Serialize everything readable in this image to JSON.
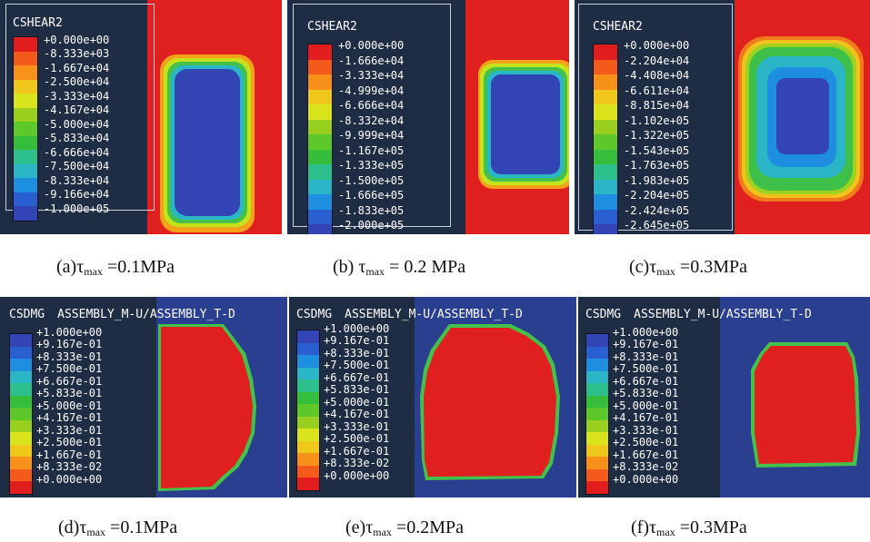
{
  "colors": {
    "red": "#e01f1f",
    "blue": "#3646a8",
    "navy": "#1e2c44",
    "panel_bg": "#1e2c44",
    "cdmg_bg": "#2a3f8f",
    "shear_scale": [
      "#e21d1d",
      "#f45a1a",
      "#f8911a",
      "#f0c81c",
      "#d9e41c",
      "#99d01f",
      "#5ec72a",
      "#35bd3c",
      "#2ec08c",
      "#2bb6c8",
      "#1d8ee0",
      "#2a5fd2",
      "#3344b4"
    ],
    "dmg_scale": [
      "#3344b4",
      "#2a5fd2",
      "#1d8ee0",
      "#2bb6c8",
      "#2ec08c",
      "#35bd3c",
      "#5ec72a",
      "#99d01f",
      "#d9e41c",
      "#f0c81c",
      "#f8911a",
      "#f45a1a",
      "#e21d1d"
    ]
  },
  "panels": {
    "a": {
      "legend_title": "CSHEAR2",
      "legend_values": [
        "+0.000e+00",
        "-8.333e+03",
        "-1.667e+04",
        "-2.500e+04",
        "-3.333e+04",
        "-4.167e+04",
        "-5.000e+04",
        "-5.833e+04",
        "-6.666e+04",
        "-7.500e+04",
        "-8.333e+04",
        "-9.166e+04",
        "-1.000e+05"
      ],
      "caption": {
        "prefix": "(a)",
        "tau": "τ",
        "sub": "max",
        "value": " =0.1MPa"
      }
    },
    "b": {
      "legend_title": "CSHEAR2",
      "legend_values": [
        "+0.000e+00",
        "-1.666e+04",
        "-3.333e+04",
        "-4.999e+04",
        "-6.666e+04",
        "-8.332e+04",
        "-9.999e+04",
        "-1.167e+05",
        "-1.333e+05",
        "-1.500e+05",
        "-1.666e+05",
        "-1.833e+05",
        "-2.000e+05"
      ],
      "caption": {
        "prefix": "(b) ",
        "tau": "τ",
        "sub": "max",
        "value": " = 0.2 MPa"
      }
    },
    "c": {
      "legend_title": "CSHEAR2",
      "legend_values": [
        "+0.000e+00",
        "-2.204e+04",
        "-4.408e+04",
        "-6.611e+04",
        "-8.815e+04",
        "-1.102e+05",
        "-1.322e+05",
        "-1.543e+05",
        "-1.763e+05",
        "-1.983e+05",
        "-2.204e+05",
        "-2.424e+05",
        "-2.645e+05"
      ],
      "caption": {
        "prefix": "(c)",
        "tau": "τ",
        "sub": "max",
        "value": " =0.3MPa"
      }
    },
    "d": {
      "legend_title": "CSDMG",
      "assembly_label": "ASSEMBLY_M-U/ASSEMBLY_T-D",
      "legend_values": [
        "+1.000e+00",
        "+9.167e-01",
        "+8.333e-01",
        "+7.500e-01",
        "+6.667e-01",
        "+5.833e-01",
        "+5.000e-01",
        "+4.167e-01",
        "+3.333e-01",
        "+2.500e-01",
        "+1.667e-01",
        "+8.333e-02",
        "+0.000e+00"
      ],
      "caption": {
        "prefix": "(d)",
        "tau": "τ",
        "sub": "max",
        "value": " =0.1MPa"
      }
    },
    "e": {
      "legend_title": "CSDMG",
      "assembly_label": "ASSEMBLY_M-U/ASSEMBLY_T-D",
      "legend_values": [
        "+1.000e+00",
        "+9.167e-01",
        "+8.333e-01",
        "+7.500e-01",
        "+6.667e-01",
        "+5.833e-01",
        "+5.000e-01",
        "+4.167e-01",
        "+3.333e-01",
        "+2.500e-01",
        "+1.667e-01",
        "+8.333e-02",
        "+0.000e+00"
      ],
      "caption": {
        "prefix": "(e)",
        "tau": "τ",
        "sub": "max",
        "value": " =0.2MPa"
      }
    },
    "f": {
      "legend_title": "CSDMG",
      "assembly_label": "ASSEMBLY_M-U/ASSEMBLY_T-D",
      "legend_values": [
        "+1.000e+00",
        "+9.167e-01",
        "+8.333e-01",
        "+7.500e-01",
        "+6.667e-01",
        "+5.833e-01",
        "+5.000e-01",
        "+4.167e-01",
        "+3.333e-01",
        "+2.500e-01",
        "+1.667e-01",
        "+8.333e-02",
        "+0.000e+00"
      ],
      "caption": {
        "prefix": "(f)",
        "tau": "τ",
        "sub": "max",
        "value": " =0.3MPa"
      }
    }
  }
}
